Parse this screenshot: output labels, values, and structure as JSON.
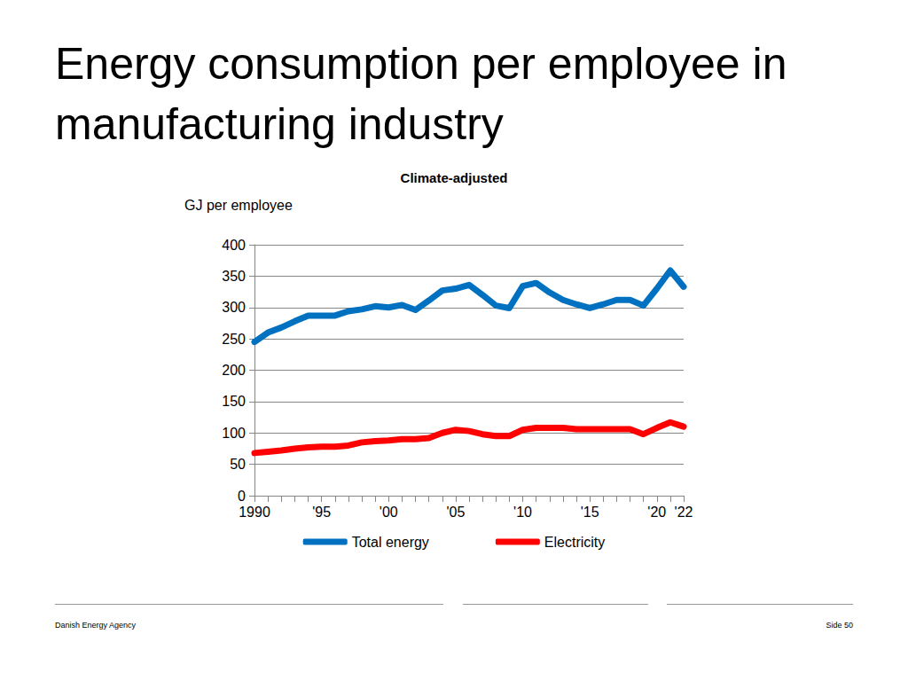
{
  "chart_data": {
    "type": "line",
    "title": "Energy consumption per employee in manufacturing industry",
    "subtitle": "Climate-adjusted",
    "y_label": "GJ per employee",
    "categories": [
      "1990",
      null,
      null,
      null,
      null,
      "'95",
      null,
      null,
      null,
      null,
      "'00",
      null,
      null,
      null,
      null,
      "'05",
      null,
      null,
      null,
      null,
      "'10",
      null,
      null,
      null,
      null,
      "'15",
      null,
      null,
      null,
      null,
      "'20",
      null,
      "'22"
    ],
    "series": [
      {
        "name": "Total energy",
        "color": "#0070c0",
        "values": [
          245,
          260,
          268,
          278,
          287,
          287,
          287,
          294,
          297,
          302,
          300,
          304,
          296,
          311,
          327,
          330,
          336,
          320,
          303,
          299,
          334,
          339,
          324,
          312,
          305,
          299,
          305,
          312,
          312,
          303,
          330,
          359,
          333
        ]
      },
      {
        "name": "Electricity",
        "color": "#ff0000",
        "values": [
          68,
          70,
          72,
          75,
          77,
          78,
          78,
          80,
          85,
          87,
          88,
          90,
          90,
          92,
          100,
          105,
          103,
          98,
          95,
          95,
          105,
          108,
          108,
          108,
          106,
          106,
          106,
          106,
          106,
          98,
          108,
          117,
          110
        ]
      }
    ],
    "ylim": [
      0,
      400
    ],
    "yticks": [
      0,
      50,
      100,
      150,
      200,
      250,
      300,
      350,
      400
    ],
    "grid": true,
    "legend": "bottom"
  },
  "footer": {
    "left": "Danish Energy Agency",
    "right": "Side 50"
  }
}
